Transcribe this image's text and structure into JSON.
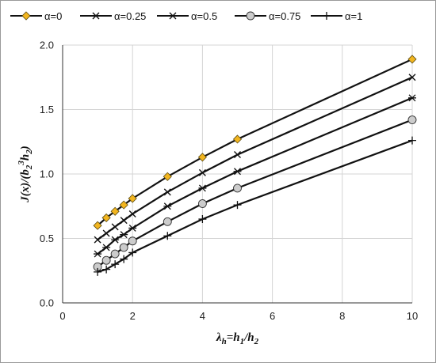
{
  "chart_data": {
    "type": "line",
    "title": "",
    "xlabel": "λh=h1/h2",
    "ylabel": "J(x)/(b23h2)",
    "xlabel_parts": [
      {
        "text": "λ",
        "role": "base"
      },
      {
        "text": "h",
        "role": "sub"
      },
      {
        "text": "=",
        "role": "base"
      },
      {
        "text": "h",
        "role": "base"
      },
      {
        "text": "1",
        "role": "sub"
      },
      {
        "text": "/",
        "role": "base"
      },
      {
        "text": "h",
        "role": "base"
      },
      {
        "text": "2",
        "role": "sub"
      }
    ],
    "ylabel_parts": [
      {
        "text": "J",
        "role": "base"
      },
      {
        "text": "(x)/(b",
        "role": "base"
      },
      {
        "text": "2",
        "role": "sub"
      },
      {
        "text": "3",
        "role": "sup"
      },
      {
        "text": "h",
        "role": "base"
      },
      {
        "text": "2",
        "role": "sub"
      },
      {
        "text": ")",
        "role": "base"
      }
    ],
    "xlim": [
      0,
      10
    ],
    "ylim": [
      0,
      2.0
    ],
    "xticks": [
      0,
      2,
      4,
      6,
      8,
      10
    ],
    "xtick_labels": [
      "0",
      "2",
      "4",
      "6",
      "8",
      "10"
    ],
    "yticks": [
      0,
      0.5,
      1.0,
      1.5,
      2.0
    ],
    "ytick_labels": [
      "0.0",
      "0.5",
      "1.0",
      "1.5",
      "2.0"
    ],
    "grid": true,
    "legend_position": "top",
    "series": [
      {
        "name": "α=0",
        "marker": "diamond",
        "marker_color": "#f2b51f",
        "x": [
          1,
          1.25,
          1.5,
          1.75,
          2,
          3,
          4,
          5,
          10
        ],
        "y": [
          0.6,
          0.66,
          0.71,
          0.76,
          0.81,
          0.98,
          1.13,
          1.27,
          1.89
        ]
      },
      {
        "name": "α=0.25",
        "marker": "x",
        "x": [
          1,
          1.25,
          1.5,
          1.75,
          2,
          3,
          4,
          5,
          10
        ],
        "y": [
          0.49,
          0.54,
          0.59,
          0.64,
          0.69,
          0.86,
          1.01,
          1.15,
          1.75
        ]
      },
      {
        "name": "α=0.5",
        "marker": "asterisk",
        "x": [
          1,
          1.25,
          1.5,
          1.75,
          2,
          3,
          4,
          5,
          10
        ],
        "y": [
          0.38,
          0.43,
          0.49,
          0.53,
          0.58,
          0.75,
          0.89,
          1.02,
          1.59
        ]
      },
      {
        "name": "α=0.75",
        "marker": "circle",
        "marker_color": "#cccccc",
        "x": [
          1,
          1.25,
          1.5,
          1.75,
          2,
          3,
          4,
          5,
          10
        ],
        "y": [
          0.28,
          0.33,
          0.38,
          0.43,
          0.48,
          0.63,
          0.77,
          0.89,
          1.42
        ]
      },
      {
        "name": "α=1",
        "marker": "plus",
        "x": [
          1,
          1.25,
          1.5,
          1.75,
          2,
          3,
          4,
          5,
          10
        ],
        "y": [
          0.24,
          0.26,
          0.3,
          0.34,
          0.39,
          0.52,
          0.65,
          0.76,
          1.26
        ]
      }
    ]
  }
}
